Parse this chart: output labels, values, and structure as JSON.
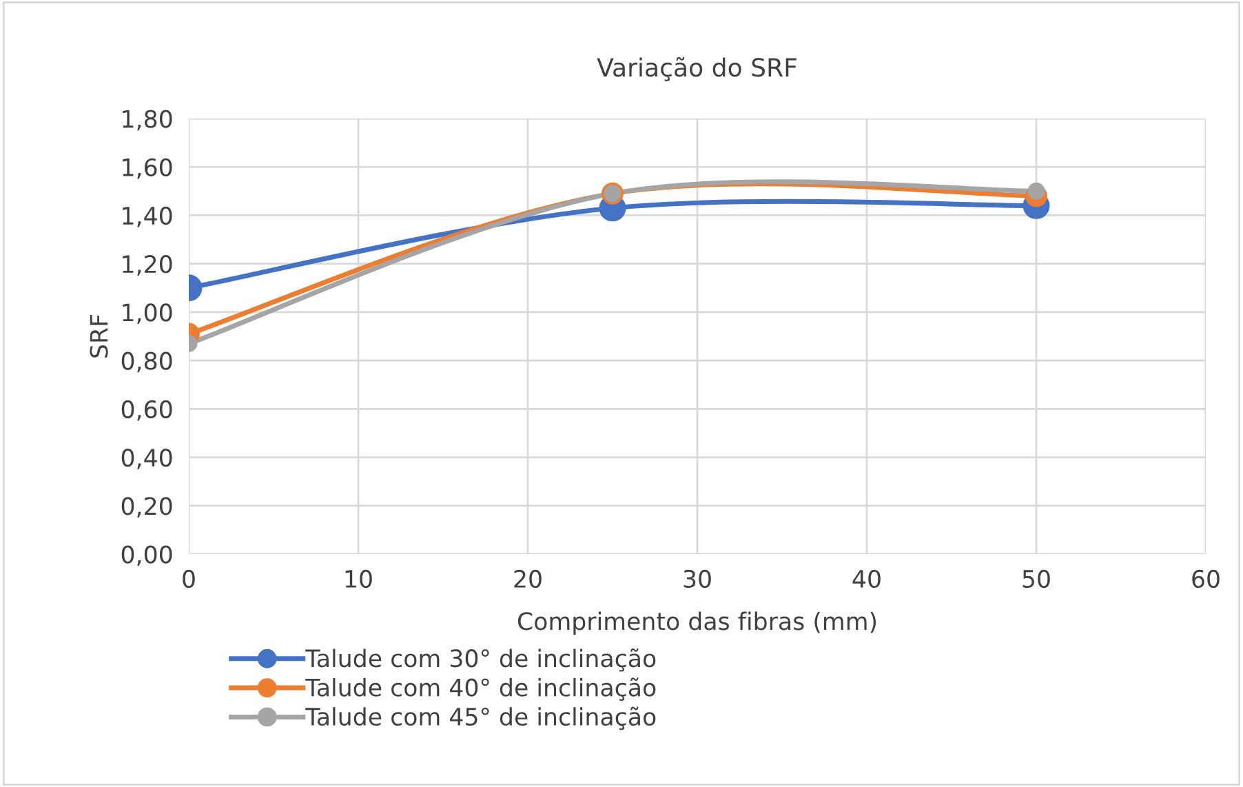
{
  "chart_data": {
    "type": "line",
    "title": "Variação do SRF",
    "xlabel": "Comprimento das fibras (mm)",
    "ylabel": "SRF",
    "x": [
      0,
      25,
      50
    ],
    "series": [
      {
        "name": "Talude com 30° de inclinação",
        "color": "#4472c4",
        "values": [
          1.1,
          1.43,
          1.44
        ]
      },
      {
        "name": "Talude com 40° de inclinação",
        "color": "#ed7d31",
        "values": [
          0.91,
          1.49,
          1.48
        ]
      },
      {
        "name": "Talude com 45° de inclinação",
        "color": "#a5a5a5",
        "values": [
          0.87,
          1.49,
          1.5
        ]
      }
    ],
    "xlim": [
      0,
      60
    ],
    "xticks": [
      0,
      10,
      20,
      30,
      40,
      50,
      60
    ],
    "ylim": [
      0,
      1.8
    ],
    "yticks": [
      {
        "value": 0,
        "label": "0,00"
      },
      {
        "value": 0.2,
        "label": "0,20"
      },
      {
        "value": 0.4,
        "label": "0,40"
      },
      {
        "value": 0.6,
        "label": "0,60"
      },
      {
        "value": 0.8,
        "label": "0,80"
      },
      {
        "value": 1.0,
        "label": "1,00"
      },
      {
        "value": 1.2,
        "label": "1,20"
      },
      {
        "value": 1.4,
        "label": "1,40"
      },
      {
        "value": 1.6,
        "label": "1,60"
      },
      {
        "value": 1.8,
        "label": "1,80"
      }
    ],
    "grid": true,
    "legend": "bottom left",
    "marker": "circle",
    "line_style": "solid"
  }
}
